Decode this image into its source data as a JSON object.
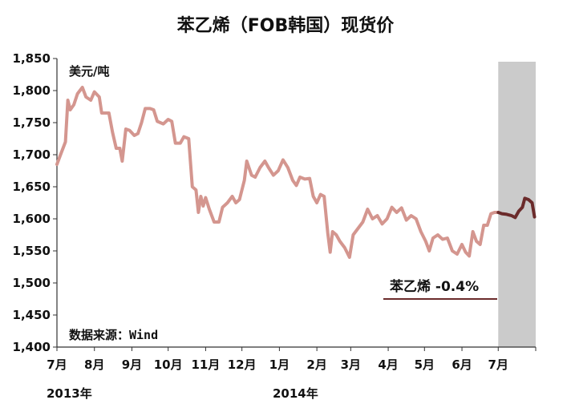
{
  "chart_data": {
    "type": "line",
    "title": "苯乙烯（FOB韩国）现货价",
    "unit_label": "美元/吨",
    "source_label": "数据来源：Wind",
    "ylim": [
      1400,
      1850
    ],
    "y_ticks": [
      "1,400",
      "1,450",
      "1,500",
      "1,550",
      "1,600",
      "1,650",
      "1,700",
      "1,750",
      "1,800",
      "1,850"
    ],
    "x_tick_labels": [
      "7月",
      "8月",
      "9月",
      "10月",
      "11月",
      "12月",
      "1月",
      "2月",
      "3月",
      "4月",
      "5月",
      "6月",
      "7月"
    ],
    "year_labels": [
      "2013年",
      "2014年"
    ],
    "grid": false,
    "highlight_period": "2014年7月",
    "annotation": "苯乙烯 -0.4%",
    "colors": {
      "series": "#d4968f",
      "highlight_series": "#6b2b2b",
      "shade": "#cbcbcb"
    },
    "series_points": [
      {
        "x": "2013-07-01",
        "y": 1685
      },
      {
        "x": "2013-07-04",
        "y": 1700
      },
      {
        "x": "2013-07-08",
        "y": 1720
      },
      {
        "x": "2013-07-10",
        "y": 1785
      },
      {
        "x": "2013-07-12",
        "y": 1770
      },
      {
        "x": "2013-07-15",
        "y": 1778
      },
      {
        "x": "2013-07-18",
        "y": 1795
      },
      {
        "x": "2013-07-22",
        "y": 1805
      },
      {
        "x": "2013-07-25",
        "y": 1790
      },
      {
        "x": "2013-07-29",
        "y": 1785
      },
      {
        "x": "2013-08-01",
        "y": 1798
      },
      {
        "x": "2013-08-05",
        "y": 1790
      },
      {
        "x": "2013-08-07",
        "y": 1765
      },
      {
        "x": "2013-08-13",
        "y": 1765
      },
      {
        "x": "2013-08-16",
        "y": 1735
      },
      {
        "x": "2013-08-19",
        "y": 1710
      },
      {
        "x": "2013-08-22",
        "y": 1710
      },
      {
        "x": "2013-08-24",
        "y": 1690
      },
      {
        "x": "2013-08-27",
        "y": 1740
      },
      {
        "x": "2013-08-30",
        "y": 1738
      },
      {
        "x": "2013-09-03",
        "y": 1730
      },
      {
        "x": "2013-09-06",
        "y": 1733
      },
      {
        "x": "2013-09-09",
        "y": 1750
      },
      {
        "x": "2013-09-12",
        "y": 1772
      },
      {
        "x": "2013-09-16",
        "y": 1772
      },
      {
        "x": "2013-09-19",
        "y": 1770
      },
      {
        "x": "2013-09-22",
        "y": 1752
      },
      {
        "x": "2013-09-27",
        "y": 1748
      },
      {
        "x": "2013-10-01",
        "y": 1755
      },
      {
        "x": "2013-10-04",
        "y": 1752
      },
      {
        "x": "2013-10-07",
        "y": 1718
      },
      {
        "x": "2013-10-11",
        "y": 1718
      },
      {
        "x": "2013-10-14",
        "y": 1728
      },
      {
        "x": "2013-10-18",
        "y": 1725
      },
      {
        "x": "2013-10-21",
        "y": 1650
      },
      {
        "x": "2013-10-24",
        "y": 1645
      },
      {
        "x": "2013-10-26",
        "y": 1610
      },
      {
        "x": "2013-10-28",
        "y": 1635
      },
      {
        "x": "2013-10-30",
        "y": 1620
      },
      {
        "x": "2013-11-01",
        "y": 1633
      },
      {
        "x": "2013-11-04",
        "y": 1615
      },
      {
        "x": "2013-11-08",
        "y": 1595
      },
      {
        "x": "2013-11-12",
        "y": 1595
      },
      {
        "x": "2013-11-15",
        "y": 1618
      },
      {
        "x": "2013-11-19",
        "y": 1625
      },
      {
        "x": "2013-11-23",
        "y": 1635
      },
      {
        "x": "2013-11-26",
        "y": 1625
      },
      {
        "x": "2013-11-29",
        "y": 1630
      },
      {
        "x": "2013-12-03",
        "y": 1660
      },
      {
        "x": "2013-12-05",
        "y": 1690
      },
      {
        "x": "2013-12-09",
        "y": 1668
      },
      {
        "x": "2013-12-12",
        "y": 1665
      },
      {
        "x": "2013-12-16",
        "y": 1680
      },
      {
        "x": "2013-12-20",
        "y": 1690
      },
      {
        "x": "2013-12-23",
        "y": 1680
      },
      {
        "x": "2013-12-27",
        "y": 1668
      },
      {
        "x": "2013-12-31",
        "y": 1675
      },
      {
        "x": "2014-01-04",
        "y": 1692
      },
      {
        "x": "2014-01-08",
        "y": 1680
      },
      {
        "x": "2014-01-12",
        "y": 1660
      },
      {
        "x": "2014-01-15",
        "y": 1652
      },
      {
        "x": "2014-01-18",
        "y": 1665
      },
      {
        "x": "2014-01-22",
        "y": 1662
      },
      {
        "x": "2014-01-26",
        "y": 1663
      },
      {
        "x": "2014-01-29",
        "y": 1635
      },
      {
        "x": "2014-02-01",
        "y": 1625
      },
      {
        "x": "2014-02-04",
        "y": 1638
      },
      {
        "x": "2014-02-07",
        "y": 1635
      },
      {
        "x": "2014-02-10",
        "y": 1578
      },
      {
        "x": "2014-02-12",
        "y": 1548
      },
      {
        "x": "2014-02-14",
        "y": 1580
      },
      {
        "x": "2014-02-17",
        "y": 1575
      },
      {
        "x": "2014-02-20",
        "y": 1565
      },
      {
        "x": "2014-02-24",
        "y": 1555
      },
      {
        "x": "2014-02-28",
        "y": 1540
      },
      {
        "x": "2014-03-03",
        "y": 1575
      },
      {
        "x": "2014-03-07",
        "y": 1585
      },
      {
        "x": "2014-03-11",
        "y": 1595
      },
      {
        "x": "2014-03-15",
        "y": 1615
      },
      {
        "x": "2014-03-19",
        "y": 1600
      },
      {
        "x": "2014-03-23",
        "y": 1605
      },
      {
        "x": "2014-03-27",
        "y": 1592
      },
      {
        "x": "2014-03-31",
        "y": 1600
      },
      {
        "x": "2014-04-04",
        "y": 1618
      },
      {
        "x": "2014-04-08",
        "y": 1610
      },
      {
        "x": "2014-04-12",
        "y": 1617
      },
      {
        "x": "2014-04-16",
        "y": 1598
      },
      {
        "x": "2014-04-20",
        "y": 1605
      },
      {
        "x": "2014-04-24",
        "y": 1600
      },
      {
        "x": "2014-04-28",
        "y": 1580
      },
      {
        "x": "2014-05-02",
        "y": 1565
      },
      {
        "x": "2014-05-05",
        "y": 1550
      },
      {
        "x": "2014-05-08",
        "y": 1570
      },
      {
        "x": "2014-05-12",
        "y": 1575
      },
      {
        "x": "2014-05-16",
        "y": 1568
      },
      {
        "x": "2014-05-20",
        "y": 1570
      },
      {
        "x": "2014-05-24",
        "y": 1550
      },
      {
        "x": "2014-05-28",
        "y": 1545
      },
      {
        "x": "2014-06-01",
        "y": 1560
      },
      {
        "x": "2014-06-04",
        "y": 1548
      },
      {
        "x": "2014-06-07",
        "y": 1542
      },
      {
        "x": "2014-06-10",
        "y": 1580
      },
      {
        "x": "2014-06-13",
        "y": 1565
      },
      {
        "x": "2014-06-16",
        "y": 1560
      },
      {
        "x": "2014-06-19",
        "y": 1590
      },
      {
        "x": "2014-06-22",
        "y": 1590
      },
      {
        "x": "2014-06-25",
        "y": 1608
      },
      {
        "x": "2014-06-28",
        "y": 1610
      },
      {
        "x": "2014-07-01",
        "y": 1610
      }
    ],
    "highlight_points": [
      {
        "x": "2014-07-01",
        "y": 1610
      },
      {
        "x": "2014-07-04",
        "y": 1608
      },
      {
        "x": "2014-07-08",
        "y": 1607
      },
      {
        "x": "2014-07-12",
        "y": 1605
      },
      {
        "x": "2014-07-15",
        "y": 1602
      },
      {
        "x": "2014-07-18",
        "y": 1612
      },
      {
        "x": "2014-07-21",
        "y": 1618
      },
      {
        "x": "2014-07-23",
        "y": 1632
      },
      {
        "x": "2014-07-26",
        "y": 1630
      },
      {
        "x": "2014-07-29",
        "y": 1625
      },
      {
        "x": "2014-07-31",
        "y": 1603
      }
    ]
  }
}
